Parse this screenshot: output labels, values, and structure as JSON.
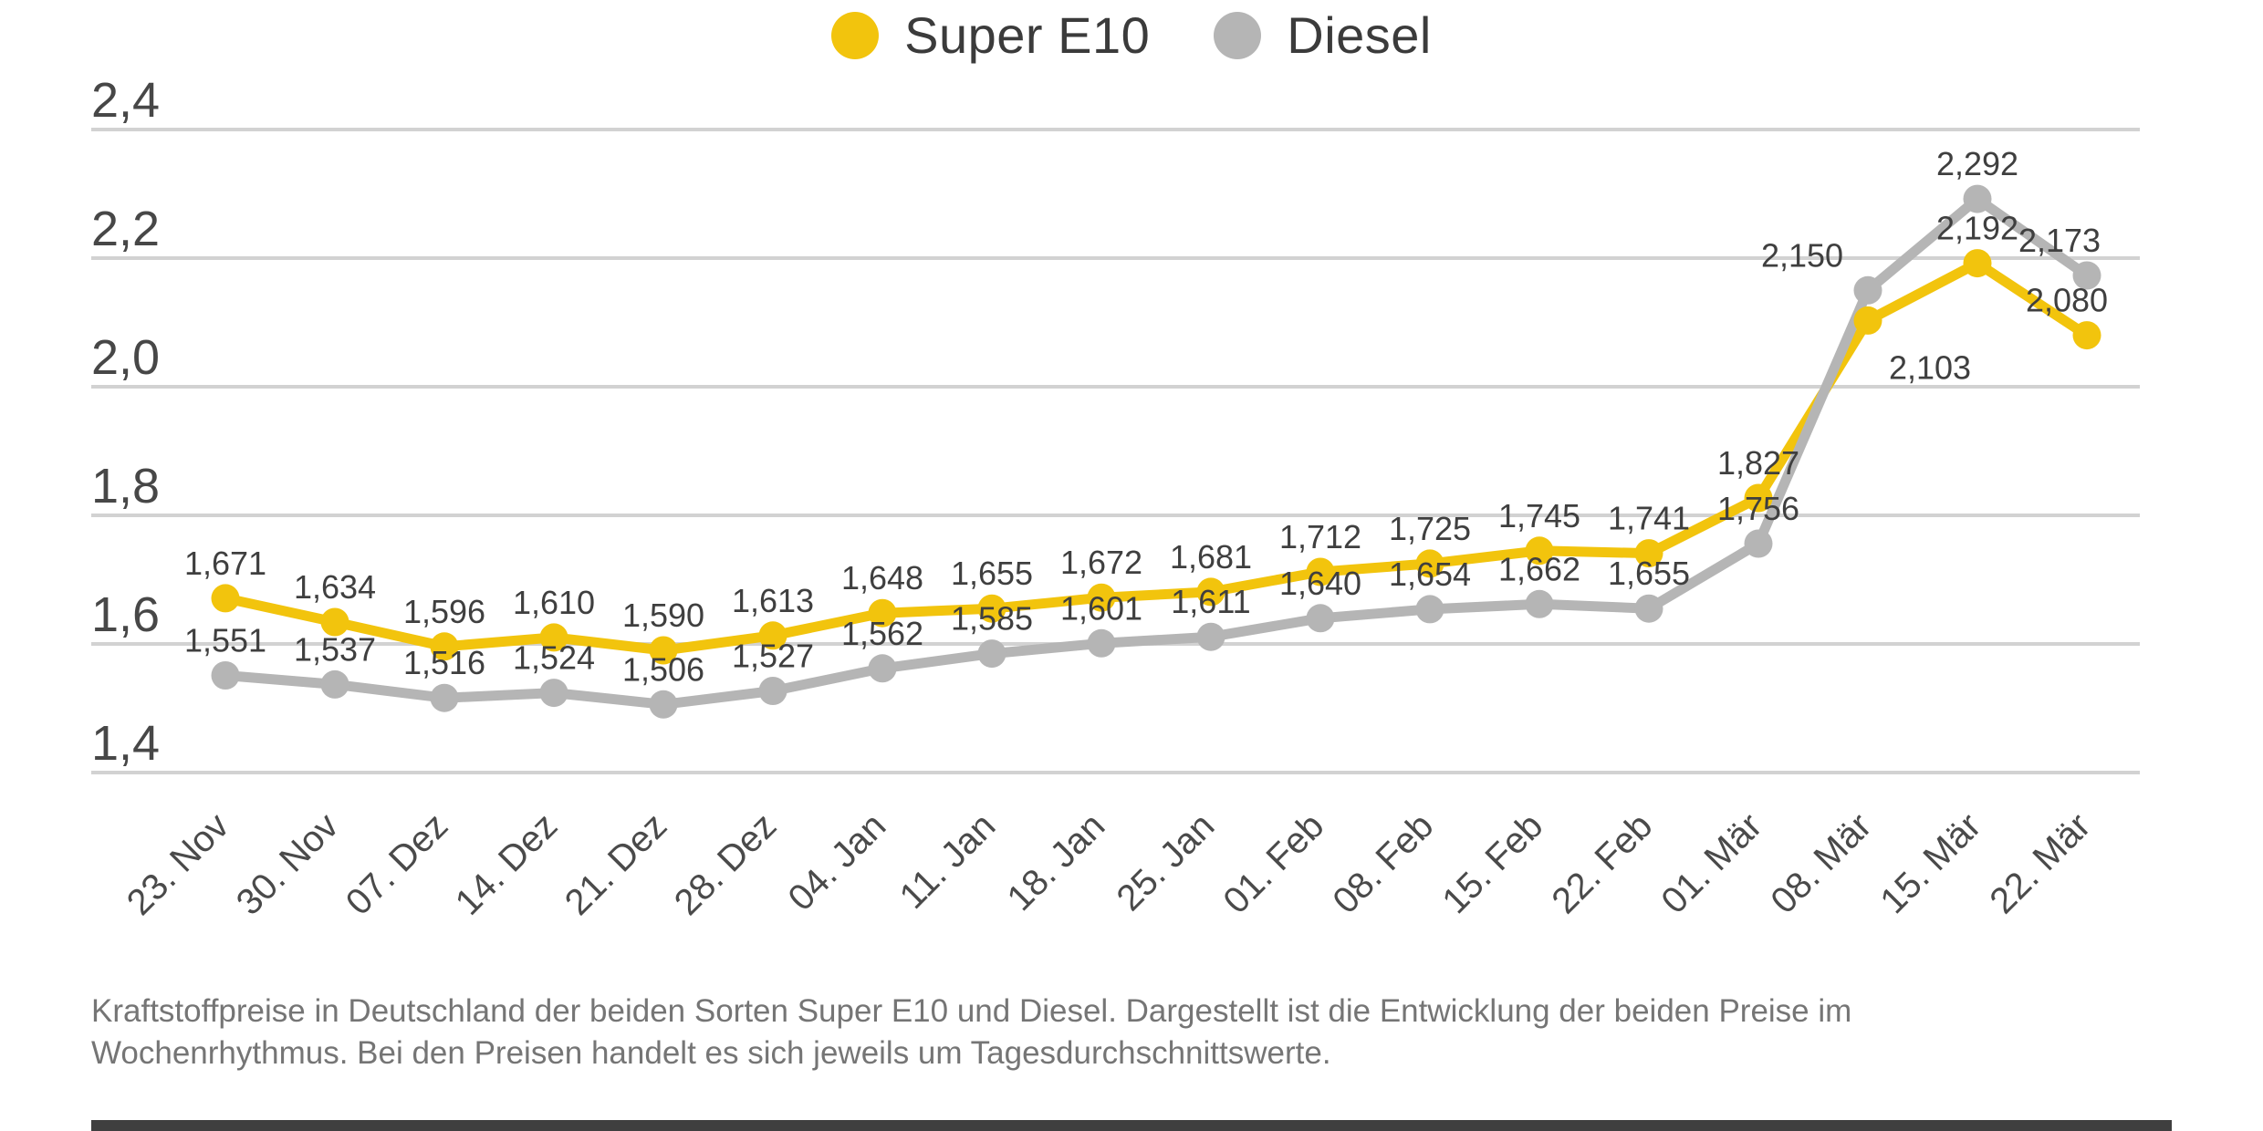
{
  "legend": {
    "items": [
      {
        "label": "Super E10",
        "color": "#F2C40D"
      },
      {
        "label": "Diesel",
        "color": "#B5B5B5"
      }
    ]
  },
  "chart_data": {
    "type": "line",
    "title": "",
    "xlabel": "",
    "ylabel": "",
    "categories": [
      "23. Nov",
      "30. Nov",
      "07. Dez",
      "14. Dez",
      "21. Dez",
      "28. Dez",
      "04. Jan",
      "11. Jan",
      "18. Jan",
      "25. Jan",
      "01. Feb",
      "08. Feb",
      "15. Feb",
      "22. Feb",
      "01. Mär",
      "08. Mär",
      "15. Mär",
      "22. Mär"
    ],
    "series": [
      {
        "name": "Super E10",
        "color": "#F2C40D",
        "values": [
          1.671,
          1.634,
          1.596,
          1.61,
          1.59,
          1.613,
          1.648,
          1.655,
          1.672,
          1.681,
          1.712,
          1.725,
          1.745,
          1.741,
          1.827,
          2.103,
          2.192,
          2.08
        ],
        "point_labels": [
          "1,671",
          "1,634",
          "1,596",
          "1,610",
          "1,590",
          "1,613",
          "1,648",
          "1,655",
          "1,672",
          "1,681",
          "1,712",
          "1,725",
          "1,745",
          "1,741",
          "1,827",
          "2,103",
          "2,192",
          "2,080"
        ]
      },
      {
        "name": "Diesel",
        "color": "#B5B5B5",
        "values": [
          1.551,
          1.537,
          1.516,
          1.524,
          1.506,
          1.527,
          1.562,
          1.585,
          1.601,
          1.611,
          1.64,
          1.654,
          1.662,
          1.655,
          1.756,
          2.15,
          2.292,
          2.173
        ],
        "point_labels": [
          "1,551",
          "1,537",
          "1,516",
          "1,524",
          "1,506",
          "1,527",
          "1,562",
          "1,585",
          "1,601",
          "1,611",
          "1,640",
          "1,654",
          "1,662",
          "1,655",
          "1,756",
          "2,150",
          "2,292",
          "2,173"
        ]
      }
    ],
    "ylim": [
      1.4,
      2.4
    ],
    "yticks": [
      2.4,
      2.2,
      2.0,
      1.8,
      1.6,
      1.4
    ],
    "ytick_labels": [
      "2,4",
      "2,2",
      "2,0",
      "1,8",
      "1,6",
      "1,4"
    ],
    "grid": "horizontal",
    "gridline_color": "#D2D2D2",
    "legend_position": "top-center",
    "decimal_separator": ","
  },
  "caption": {
    "line1": "Kraftstoffpreise in Deutschland der beiden Sorten Super E10 und Diesel. Dargestellt ist die Entwicklung der beiden Preise im",
    "line2": "Wochenrhythmus. Bei den Preisen handelt es sich jeweils um Tagesdurchschnittswerte."
  },
  "colors": {
    "super_e10": "#F2C40D",
    "diesel": "#B5B5B5",
    "gridline": "#D2D2D2",
    "axis_text": "#474747",
    "data_label_text": "#3f3f3f",
    "caption_text": "#757575",
    "bottom_bar": "#3f3f3f"
  }
}
